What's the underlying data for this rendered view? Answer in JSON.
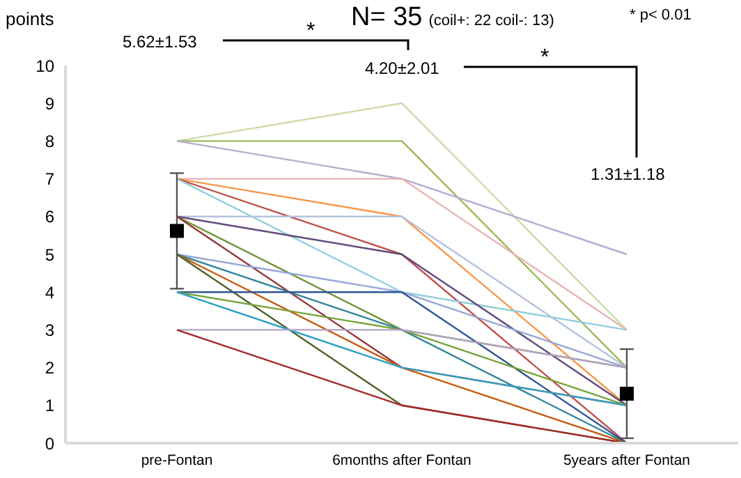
{
  "chart_data": {
    "type": "line",
    "title": "N= 35",
    "subtitle": "(coil+: 22  coil-: 13)",
    "ylabel": "points",
    "categories": [
      "pre-Fontan",
      "6months after Fontan",
      "5years after Fontan"
    ],
    "series": [
      {
        "color": "#c9dcaa",
        "values": [
          8,
          9,
          3
        ]
      },
      {
        "color": "#9bbb59",
        "values": [
          8,
          8,
          2
        ]
      },
      {
        "color": "#b8a9cf",
        "values": [
          8,
          7,
          5
        ]
      },
      {
        "color": "#e6b4b2",
        "values": [
          7,
          7,
          3
        ]
      },
      {
        "color": "#f79646",
        "values": [
          7,
          6,
          1
        ]
      },
      {
        "color": "#c0504d",
        "values": [
          7,
          5,
          0
        ]
      },
      {
        "color": "#92cddc",
        "values": [
          7,
          4,
          3
        ]
      },
      {
        "color": "#b3c3e0",
        "values": [
          6,
          6,
          2
        ]
      },
      {
        "color": "#5f497a",
        "values": [
          6,
          5,
          1
        ]
      },
      {
        "color": "#77933c",
        "values": [
          6,
          3,
          2
        ]
      },
      {
        "color": "#953735",
        "values": [
          6,
          2,
          1
        ]
      },
      {
        "color": "#95a7d6",
        "values": [
          5,
          4,
          2
        ]
      },
      {
        "color": "#31859c",
        "values": [
          5,
          3,
          0
        ]
      },
      {
        "color": "#c55a11",
        "values": [
          5,
          2,
          0
        ]
      },
      {
        "color": "#4f6228",
        "values": [
          5,
          1,
          0
        ]
      },
      {
        "color": "#2f5597",
        "values": [
          4,
          4,
          0
        ]
      },
      {
        "color": "#76a33a",
        "values": [
          4,
          3,
          1
        ]
      },
      {
        "color": "#31a0c4",
        "values": [
          4,
          2,
          1
        ]
      },
      {
        "color": "#b3a2c7",
        "values": [
          3,
          3,
          2
        ]
      },
      {
        "color": "#a52a2a",
        "values": [
          3,
          1,
          0
        ]
      },
      {
        "type": "scatter",
        "color": "#000000",
        "marker": "square",
        "x": [
          "pre-Fontan",
          "5years after Fontan"
        ],
        "values": [
          5.62,
          1.31
        ],
        "errors": [
          1.53,
          1.18
        ]
      }
    ],
    "ylim": [
      0,
      10
    ],
    "yticks": [
      0,
      1,
      2,
      3,
      4,
      5,
      6,
      7,
      8,
      9,
      10
    ],
    "grid": false,
    "legend": false,
    "marker": "none",
    "annotations": [
      "* p< 0.01",
      "5.62±1.53",
      "4.20±2.01",
      "1.31±1.18",
      "*",
      "*"
    ]
  }
}
